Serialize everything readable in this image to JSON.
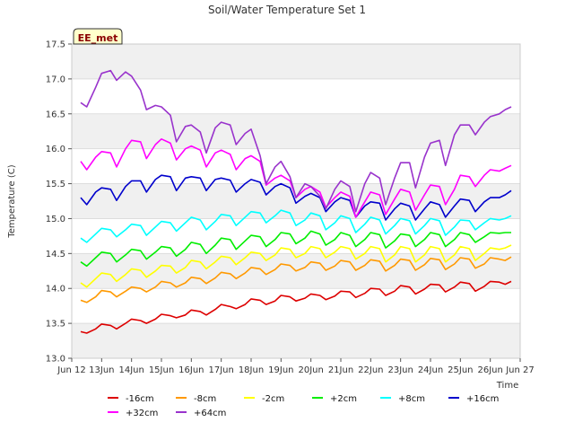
{
  "chart_data": {
    "type": "line",
    "title": "Soil/Water Temperature Set 1",
    "xlabel": "Time",
    "ylabel": "Temperature (C)",
    "badge": "EE_met",
    "xlim": [
      11.5,
      26.5
    ],
    "ylim": [
      13.0,
      17.5
    ],
    "grid": "alternating horizontal bands",
    "legend_position": "bottom",
    "x_ticks": [
      {
        "v": 11.5,
        "label": "Jun 12"
      },
      {
        "v": 12.5,
        "label": "13Jun"
      },
      {
        "v": 13.5,
        "label": "14Jun"
      },
      {
        "v": 14.5,
        "label": "15Jun"
      },
      {
        "v": 15.5,
        "label": "16Jun"
      },
      {
        "v": 16.5,
        "label": "17Jun"
      },
      {
        "v": 17.5,
        "label": "18Jun"
      },
      {
        "v": 18.5,
        "label": "19Jun"
      },
      {
        "v": 19.5,
        "label": "20Jun"
      },
      {
        "v": 20.5,
        "label": "21Jun"
      },
      {
        "v": 21.5,
        "label": "22Jun"
      },
      {
        "v": 22.5,
        "label": "23Jun"
      },
      {
        "v": 23.5,
        "label": "24Jun"
      },
      {
        "v": 24.5,
        "label": "25Jun"
      },
      {
        "v": 25.5,
        "label": "26Jun"
      },
      {
        "v": 26.5,
        "label": "Jun 27"
      }
    ],
    "y_ticks": [
      13.0,
      13.5,
      14.0,
      14.5,
      15.0,
      15.5,
      16.0,
      16.5,
      17.0,
      17.5
    ],
    "series": [
      {
        "name": "-16cm",
        "color": "#dd0000",
        "x": [
          11.8,
          12.0,
          12.3,
          12.5,
          12.8,
          13.0,
          13.3,
          13.5,
          13.8,
          14.0,
          14.3,
          14.5,
          14.8,
          15.0,
          15.3,
          15.5,
          15.8,
          16.0,
          16.3,
          16.5,
          16.8,
          17.0,
          17.3,
          17.5,
          17.8,
          18.0,
          18.3,
          18.5,
          18.8,
          19.0,
          19.3,
          19.5,
          19.8,
          20.0,
          20.3,
          20.5,
          20.8,
          21.0,
          21.3,
          21.5,
          21.8,
          22.0,
          22.3,
          22.5,
          22.8,
          23.0,
          23.3,
          23.5,
          23.8,
          24.0,
          24.3,
          24.5,
          24.8,
          25.0,
          25.3,
          25.5,
          25.8,
          26.0,
          26.2
        ],
        "y": [
          13.38,
          13.36,
          13.42,
          13.49,
          13.47,
          13.42,
          13.5,
          13.56,
          13.54,
          13.5,
          13.56,
          13.63,
          13.61,
          13.58,
          13.62,
          13.69,
          13.67,
          13.62,
          13.7,
          13.77,
          13.74,
          13.71,
          13.77,
          13.85,
          13.83,
          13.77,
          13.82,
          13.9,
          13.88,
          13.82,
          13.86,
          13.92,
          13.9,
          13.84,
          13.89,
          13.96,
          13.95,
          13.87,
          13.93,
          14.0,
          13.99,
          13.9,
          13.96,
          14.04,
          14.02,
          13.92,
          13.99,
          14.06,
          14.05,
          13.95,
          14.02,
          14.09,
          14.07,
          13.96,
          14.03,
          14.1,
          14.09,
          14.06,
          14.1
        ]
      },
      {
        "name": "-8cm",
        "color": "#ff9900",
        "x": [
          11.8,
          12.0,
          12.3,
          12.5,
          12.8,
          13.0,
          13.3,
          13.5,
          13.8,
          14.0,
          14.3,
          14.5,
          14.8,
          15.0,
          15.3,
          15.5,
          15.8,
          16.0,
          16.3,
          16.5,
          16.8,
          17.0,
          17.3,
          17.5,
          17.8,
          18.0,
          18.3,
          18.5,
          18.8,
          19.0,
          19.3,
          19.5,
          19.8,
          20.0,
          20.3,
          20.5,
          20.8,
          21.0,
          21.3,
          21.5,
          21.8,
          22.0,
          22.3,
          22.5,
          22.8,
          23.0,
          23.3,
          23.5,
          23.8,
          24.0,
          24.3,
          24.5,
          24.8,
          25.0,
          25.3,
          25.5,
          25.8,
          26.0,
          26.2
        ],
        "y": [
          13.83,
          13.8,
          13.88,
          13.97,
          13.95,
          13.88,
          13.96,
          14.02,
          14.0,
          13.95,
          14.02,
          14.1,
          14.08,
          14.02,
          14.08,
          14.16,
          14.14,
          14.07,
          14.15,
          14.23,
          14.21,
          14.14,
          14.22,
          14.3,
          14.28,
          14.2,
          14.27,
          14.35,
          14.33,
          14.25,
          14.3,
          14.38,
          14.36,
          14.26,
          14.32,
          14.4,
          14.38,
          14.26,
          14.33,
          14.41,
          14.39,
          14.25,
          14.33,
          14.42,
          14.4,
          14.26,
          14.34,
          14.43,
          14.41,
          14.27,
          14.35,
          14.44,
          14.42,
          14.29,
          14.35,
          14.44,
          14.42,
          14.4,
          14.45
        ]
      },
      {
        "name": "-2cm",
        "color": "#ffff00",
        "x": [
          11.8,
          12.0,
          12.3,
          12.5,
          12.8,
          13.0,
          13.3,
          13.5,
          13.8,
          14.0,
          14.3,
          14.5,
          14.8,
          15.0,
          15.3,
          15.5,
          15.8,
          16.0,
          16.3,
          16.5,
          16.8,
          17.0,
          17.3,
          17.5,
          17.8,
          18.0,
          18.3,
          18.5,
          18.8,
          19.0,
          19.3,
          19.5,
          19.8,
          20.0,
          20.3,
          20.5,
          20.8,
          21.0,
          21.3,
          21.5,
          21.8,
          22.0,
          22.3,
          22.5,
          22.8,
          23.0,
          23.3,
          23.5,
          23.8,
          24.0,
          24.3,
          24.5,
          24.8,
          25.0,
          25.3,
          25.5,
          25.8,
          26.0,
          26.2
        ],
        "y": [
          14.08,
          14.02,
          14.14,
          14.22,
          14.2,
          14.1,
          14.2,
          14.28,
          14.26,
          14.16,
          14.25,
          14.33,
          14.32,
          14.22,
          14.3,
          14.4,
          14.38,
          14.28,
          14.38,
          14.46,
          14.44,
          14.34,
          14.44,
          14.52,
          14.5,
          14.4,
          14.48,
          14.58,
          14.56,
          14.44,
          14.5,
          14.6,
          14.57,
          14.44,
          14.52,
          14.6,
          14.57,
          14.42,
          14.5,
          14.6,
          14.57,
          14.38,
          14.48,
          14.6,
          14.57,
          14.38,
          14.48,
          14.6,
          14.57,
          14.38,
          14.48,
          14.6,
          14.57,
          14.4,
          14.5,
          14.58,
          14.56,
          14.58,
          14.62
        ]
      },
      {
        "name": "+2cm",
        "color": "#00ee00",
        "x": [
          11.8,
          12.0,
          12.3,
          12.5,
          12.8,
          13.0,
          13.3,
          13.5,
          13.8,
          14.0,
          14.3,
          14.5,
          14.8,
          15.0,
          15.3,
          15.5,
          15.8,
          16.0,
          16.3,
          16.5,
          16.8,
          17.0,
          17.3,
          17.5,
          17.8,
          18.0,
          18.3,
          18.5,
          18.8,
          19.0,
          19.3,
          19.5,
          19.8,
          20.0,
          20.3,
          20.5,
          20.8,
          21.0,
          21.3,
          21.5,
          21.8,
          22.0,
          22.3,
          22.5,
          22.8,
          23.0,
          23.3,
          23.5,
          23.8,
          24.0,
          24.3,
          24.5,
          24.8,
          25.0,
          25.3,
          25.5,
          25.8,
          26.0,
          26.2
        ],
        "y": [
          14.38,
          14.32,
          14.44,
          14.52,
          14.5,
          14.38,
          14.48,
          14.56,
          14.54,
          14.42,
          14.52,
          14.6,
          14.58,
          14.46,
          14.56,
          14.66,
          14.63,
          14.5,
          14.62,
          14.72,
          14.7,
          14.56,
          14.68,
          14.76,
          14.74,
          14.6,
          14.7,
          14.8,
          14.78,
          14.64,
          14.72,
          14.82,
          14.78,
          14.62,
          14.7,
          14.8,
          14.76,
          14.6,
          14.7,
          14.8,
          14.77,
          14.58,
          14.68,
          14.78,
          14.76,
          14.6,
          14.7,
          14.8,
          14.77,
          14.6,
          14.7,
          14.8,
          14.77,
          14.66,
          14.74,
          14.8,
          14.79,
          14.8,
          14.8
        ]
      },
      {
        "name": "+8cm",
        "color": "#00ffff",
        "x": [
          11.8,
          12.0,
          12.3,
          12.5,
          12.8,
          13.0,
          13.3,
          13.5,
          13.8,
          14.0,
          14.3,
          14.5,
          14.8,
          15.0,
          15.3,
          15.5,
          15.8,
          16.0,
          16.3,
          16.5,
          16.8,
          17.0,
          17.3,
          17.5,
          17.8,
          18.0,
          18.3,
          18.5,
          18.8,
          19.0,
          19.3,
          19.5,
          19.8,
          20.0,
          20.3,
          20.5,
          20.8,
          21.0,
          21.3,
          21.5,
          21.8,
          22.0,
          22.3,
          22.5,
          22.8,
          23.0,
          23.3,
          23.5,
          23.8,
          24.0,
          24.3,
          24.5,
          24.8,
          25.0,
          25.3,
          25.5,
          25.8,
          26.0,
          26.2
        ],
        "y": [
          14.72,
          14.66,
          14.78,
          14.86,
          14.84,
          14.74,
          14.84,
          14.92,
          14.9,
          14.76,
          14.88,
          14.96,
          14.94,
          14.82,
          14.94,
          15.02,
          14.98,
          14.84,
          14.96,
          15.06,
          15.04,
          14.9,
          15.02,
          15.1,
          15.08,
          14.94,
          15.04,
          15.12,
          15.08,
          14.9,
          14.98,
          15.08,
          15.04,
          14.84,
          14.94,
          15.04,
          15.0,
          14.8,
          14.92,
          15.02,
          14.98,
          14.78,
          14.9,
          15.0,
          14.97,
          14.78,
          14.9,
          15.0,
          14.97,
          14.76,
          14.88,
          14.98,
          14.97,
          14.84,
          14.94,
          15.0,
          14.98,
          15.0,
          15.04
        ]
      },
      {
        "name": "+16cm",
        "color": "#0000cc",
        "x": [
          11.8,
          12.0,
          12.3,
          12.5,
          12.8,
          13.0,
          13.3,
          13.5,
          13.8,
          14.0,
          14.3,
          14.5,
          14.8,
          15.0,
          15.3,
          15.5,
          15.8,
          16.0,
          16.3,
          16.5,
          16.8,
          17.0,
          17.3,
          17.5,
          17.8,
          18.0,
          18.3,
          18.5,
          18.8,
          19.0,
          19.3,
          19.5,
          19.8,
          20.0,
          20.3,
          20.5,
          20.8,
          21.0,
          21.3,
          21.5,
          21.8,
          22.0,
          22.3,
          22.5,
          22.8,
          23.0,
          23.3,
          23.5,
          23.8,
          24.0,
          24.3,
          24.5,
          24.8,
          25.0,
          25.3,
          25.5,
          25.8,
          26.0,
          26.2
        ],
        "y": [
          15.3,
          15.2,
          15.38,
          15.44,
          15.42,
          15.26,
          15.46,
          15.54,
          15.54,
          15.38,
          15.56,
          15.62,
          15.6,
          15.4,
          15.58,
          15.6,
          15.58,
          15.4,
          15.56,
          15.58,
          15.55,
          15.38,
          15.5,
          15.56,
          15.52,
          15.34,
          15.46,
          15.5,
          15.44,
          15.22,
          15.32,
          15.36,
          15.3,
          15.1,
          15.24,
          15.3,
          15.26,
          15.02,
          15.18,
          15.24,
          15.22,
          14.98,
          15.14,
          15.22,
          15.18,
          14.98,
          15.14,
          15.24,
          15.2,
          15.02,
          15.18,
          15.28,
          15.26,
          15.1,
          15.24,
          15.3,
          15.3,
          15.34,
          15.4
        ]
      },
      {
        "name": "+32cm",
        "color": "#ff00ff",
        "x": [
          11.8,
          12.0,
          12.3,
          12.5,
          12.8,
          13.0,
          13.3,
          13.5,
          13.8,
          14.0,
          14.3,
          14.5,
          14.8,
          15.0,
          15.3,
          15.5,
          15.8,
          16.0,
          16.3,
          16.5,
          16.8,
          17.0,
          17.3,
          17.5,
          17.8,
          18.0,
          18.3,
          18.5,
          18.8,
          19.0,
          19.3,
          19.5,
          19.8,
          20.0,
          20.3,
          20.5,
          20.8,
          21.0,
          21.3,
          21.5,
          21.8,
          22.0,
          22.3,
          22.5,
          22.8,
          23.0,
          23.3,
          23.5,
          23.8,
          24.0,
          24.3,
          24.5,
          24.8,
          25.0,
          25.3,
          25.5,
          25.8,
          26.0,
          26.2
        ],
        "y": [
          15.82,
          15.7,
          15.88,
          15.96,
          15.94,
          15.74,
          16.0,
          16.12,
          16.1,
          15.86,
          16.06,
          16.14,
          16.08,
          15.84,
          16.0,
          16.04,
          15.98,
          15.74,
          15.94,
          15.98,
          15.92,
          15.7,
          15.86,
          15.9,
          15.82,
          15.48,
          15.58,
          15.62,
          15.54,
          15.3,
          15.42,
          15.46,
          15.38,
          15.16,
          15.3,
          15.38,
          15.32,
          15.02,
          15.24,
          15.38,
          15.34,
          15.06,
          15.28,
          15.42,
          15.38,
          15.12,
          15.34,
          15.48,
          15.46,
          15.2,
          15.42,
          15.62,
          15.6,
          15.46,
          15.62,
          15.7,
          15.68,
          15.72,
          15.76
        ]
      },
      {
        "name": "+64cm",
        "color": "#9933cc",
        "x": [
          11.8,
          12.0,
          12.3,
          12.5,
          12.8,
          13.0,
          13.3,
          13.5,
          13.8,
          14.0,
          14.3,
          14.5,
          14.8,
          15.0,
          15.3,
          15.5,
          15.8,
          16.0,
          16.3,
          16.5,
          16.8,
          17.0,
          17.3,
          17.5,
          17.8,
          18.0,
          18.3,
          18.5,
          18.8,
          19.0,
          19.3,
          19.5,
          19.8,
          20.0,
          20.3,
          20.5,
          20.8,
          21.0,
          21.3,
          21.5,
          21.8,
          22.0,
          22.3,
          22.5,
          22.8,
          23.0,
          23.3,
          23.5,
          23.8,
          24.0,
          24.3,
          24.5,
          24.8,
          25.0,
          25.3,
          25.5,
          25.8,
          26.0,
          26.2
        ],
        "y": [
          16.66,
          16.6,
          16.88,
          17.08,
          17.12,
          16.98,
          17.1,
          17.04,
          16.84,
          16.56,
          16.62,
          16.6,
          16.48,
          16.1,
          16.32,
          16.34,
          16.24,
          15.94,
          16.3,
          16.38,
          16.34,
          16.06,
          16.22,
          16.28,
          15.9,
          15.5,
          15.74,
          15.82,
          15.6,
          15.3,
          15.5,
          15.46,
          15.32,
          15.14,
          15.42,
          15.54,
          15.46,
          15.1,
          15.5,
          15.66,
          15.58,
          15.2,
          15.58,
          15.8,
          15.8,
          15.44,
          15.88,
          16.08,
          16.12,
          15.76,
          16.2,
          16.34,
          16.34,
          16.2,
          16.38,
          16.46,
          16.5,
          16.56,
          16.6
        ]
      }
    ]
  }
}
